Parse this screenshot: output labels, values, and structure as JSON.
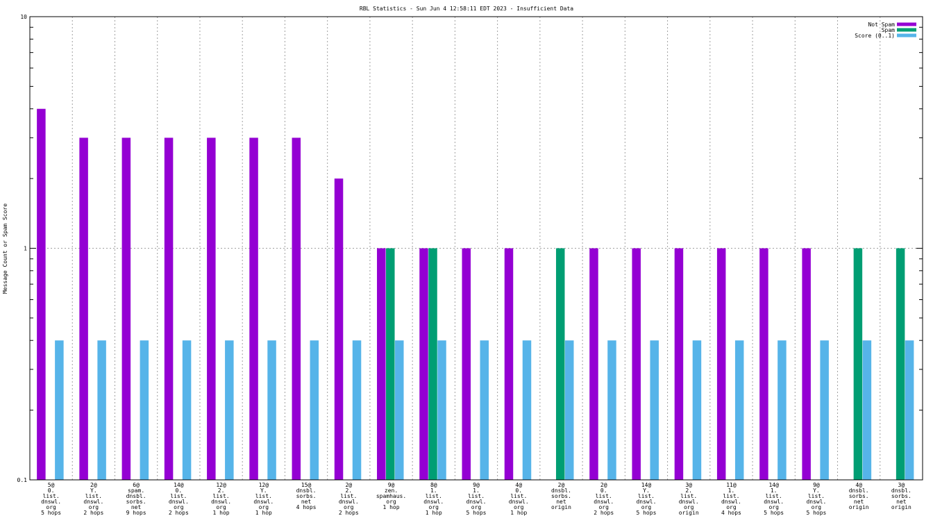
{
  "chart_data": {
    "type": "bar",
    "title": "RBL Statistics - Sun Jun  4 12:58:11 EDT 2023 - Insufficient Data",
    "ylabel": "Message Count or Spam Score",
    "xlabel": "",
    "yscale": "log",
    "ylim": [
      0.1,
      10
    ],
    "ytick_labels": [
      "0.1",
      "1",
      "10"
    ],
    "grid": true,
    "legend_position": "top-right",
    "categories": [
      [
        "5@",
        "0.",
        "list.",
        "dnswl.",
        "org",
        "5 hops"
      ],
      [
        "2@",
        "Y.",
        "list.",
        "dnswl.",
        "org",
        "2 hops"
      ],
      [
        "6@",
        "spam.",
        "dnsbl.",
        "sorbs.",
        "net",
        "9 hops"
      ],
      [
        "14@",
        "0.",
        "list.",
        "dnswl.",
        "org",
        "2 hops"
      ],
      [
        "12@",
        "2.",
        "list.",
        "dnswl.",
        "org",
        "1 hop"
      ],
      [
        "12@",
        "Y.",
        "list.",
        "dnswl.",
        "org",
        "1 hop"
      ],
      [
        "15@",
        "dnsbl.",
        "sorbs.",
        "net",
        "4 hops"
      ],
      [
        "2@",
        "2.",
        "list.",
        "dnswl.",
        "org",
        "2 hops"
      ],
      [
        "9@",
        "zen.",
        "spamhaus.",
        "org",
        "1 hop"
      ],
      [
        "8@",
        "1.",
        "list.",
        "dnswl.",
        "org",
        "1 hop"
      ],
      [
        "9@",
        "1.",
        "list.",
        "dnswl.",
        "org",
        "5 hops"
      ],
      [
        "4@",
        "0.",
        "list.",
        "dnswl.",
        "org",
        "1 hop"
      ],
      [
        "2@",
        "dnsbl.",
        "sorbs.",
        "net",
        "origin"
      ],
      [
        "2@",
        "0.",
        "list.",
        "dnswl.",
        "org",
        "2 hops"
      ],
      [
        "14@",
        "Y.",
        "list.",
        "dnswl.",
        "org",
        "5 hops"
      ],
      [
        "3@",
        "2.",
        "list.",
        "dnswl.",
        "org",
        "origin"
      ],
      [
        "11@",
        "1.",
        "list.",
        "dnswl.",
        "org",
        "4 hops"
      ],
      [
        "14@",
        "1.",
        "list.",
        "dnswl.",
        "org",
        "5 hops"
      ],
      [
        "9@",
        "Y.",
        "list.",
        "dnswl.",
        "org",
        "5 hops"
      ],
      [
        "4@",
        "dnsbl.",
        "sorbs.",
        "net",
        "origin"
      ],
      [
        "3@",
        "dnsbl.",
        "sorbs.",
        "net",
        "origin"
      ]
    ],
    "series": [
      {
        "name": "Not Spam",
        "color": "#9400d3",
        "values": [
          4,
          3,
          3,
          3,
          3,
          3,
          3,
          2,
          1,
          1,
          1,
          1,
          0,
          1,
          1,
          1,
          1,
          1,
          1,
          0,
          0
        ]
      },
      {
        "name": "Spam",
        "color": "#009e73",
        "values": [
          0,
          0,
          0,
          0,
          0,
          0,
          0,
          0,
          1,
          1,
          0,
          0,
          1,
          0,
          0,
          0,
          0,
          0,
          0,
          1,
          1
        ]
      },
      {
        "name": "Score (0..1)",
        "color": "#56b4e9",
        "values": [
          0.4,
          0.4,
          0.4,
          0.4,
          0.4,
          0.4,
          0.4,
          0.4,
          0.4,
          0.4,
          0.4,
          0.4,
          0.4,
          0.4,
          0.4,
          0.4,
          0.4,
          0.4,
          0.4,
          0.4,
          0.4
        ]
      }
    ]
  }
}
